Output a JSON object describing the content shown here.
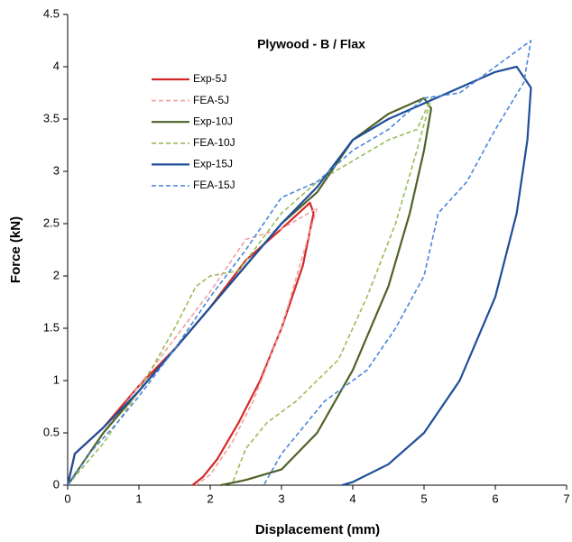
{
  "chart_data": {
    "type": "line",
    "title": "Plywood - B / Flax",
    "x_label": "Displacement (mm)",
    "y_label": "Force (kN)",
    "xlim": [
      0,
      7
    ],
    "xticks": [
      0,
      1,
      2,
      3,
      4,
      5,
      6,
      7
    ],
    "ylim": [
      0,
      4.5
    ],
    "yticks": [
      0,
      0.5,
      1,
      1.5,
      2,
      2.5,
      3,
      3.5,
      4,
      4.5
    ],
    "grid": false,
    "legend": "upper left",
    "series": [
      {
        "name": "Exp-5J",
        "color": "#d42a2a",
        "dashed": false,
        "x": [
          0,
          0.1,
          0.5,
          1,
          1.5,
          2,
          2.5,
          3,
          3.4,
          3.45,
          3.3,
          3.0,
          2.7,
          2.4,
          2.1,
          1.9,
          1.75
        ],
        "values": [
          0,
          0.3,
          0.55,
          0.95,
          1.3,
          1.7,
          2.15,
          2.45,
          2.7,
          2.6,
          2.1,
          1.5,
          1.0,
          0.6,
          0.25,
          0.08,
          0
        ]
      },
      {
        "name": "FEA-5J",
        "color": "#f0a0a0",
        "dashed": true,
        "x": [
          0,
          0.5,
          1,
          1.5,
          2,
          2.5,
          3,
          3.5,
          3.3,
          3.0,
          2.6,
          2.3,
          2.0,
          1.8
        ],
        "values": [
          0,
          0.5,
          0.95,
          1.4,
          1.85,
          2.35,
          2.45,
          2.65,
          2.2,
          1.5,
          0.8,
          0.4,
          0.1,
          0
        ]
      },
      {
        "name": "Exp-10J",
        "color": "#4f6228",
        "dashed": false,
        "x": [
          0,
          0.5,
          1,
          1.5,
          2,
          2.5,
          3,
          3.5,
          4,
          4.5,
          5,
          5.1,
          5.0,
          4.8,
          4.5,
          4.0,
          3.5,
          3.0,
          2.5,
          2.15
        ],
        "values": [
          0,
          0.5,
          0.9,
          1.3,
          1.7,
          2.1,
          2.5,
          2.8,
          3.3,
          3.55,
          3.7,
          3.6,
          3.2,
          2.6,
          1.9,
          1.1,
          0.5,
          0.15,
          0.05,
          0
        ]
      },
      {
        "name": "FEA-10J",
        "color": "#9bbb59",
        "dashed": true,
        "x": [
          0,
          0.5,
          1,
          1.5,
          1.8,
          2,
          2.4,
          3,
          3.5,
          4,
          4.5,
          4.9,
          5.1,
          4.9,
          4.6,
          4.2,
          3.8,
          3.2,
          2.8,
          2.5,
          2.3
        ],
        "values": [
          0,
          0.4,
          0.9,
          1.5,
          1.9,
          2.0,
          2.05,
          2.6,
          2.9,
          3.1,
          3.3,
          3.4,
          3.7,
          3.2,
          2.5,
          1.8,
          1.2,
          0.8,
          0.6,
          0.35,
          0
        ]
      },
      {
        "name": "Exp-15J",
        "color": "#1f4e9a",
        "dashed": false,
        "x": [
          0,
          0.1,
          0.5,
          1,
          1.5,
          2,
          2.5,
          3,
          3.5,
          4,
          4.5,
          5,
          5.5,
          6,
          6.3,
          6.5,
          6.45,
          6.3,
          6.0,
          5.5,
          5.0,
          4.5,
          4.0,
          3.85
        ],
        "values": [
          0,
          0.3,
          0.55,
          0.9,
          1.3,
          1.7,
          2.1,
          2.5,
          2.85,
          3.3,
          3.5,
          3.65,
          3.8,
          3.95,
          4.0,
          3.8,
          3.3,
          2.6,
          1.8,
          1.0,
          0.5,
          0.2,
          0.03,
          0
        ]
      },
      {
        "name": "FEA-15J",
        "color": "#4a86d8",
        "dashed": true,
        "x": [
          0,
          0.3,
          0.7,
          1,
          1.5,
          2,
          2.5,
          3,
          3.5,
          4,
          4.5,
          5,
          5.5,
          6,
          6.2,
          6.5,
          6.4,
          6.0,
          5.6,
          5.2,
          5.0,
          4.6,
          4.2,
          3.6,
          3.0,
          2.75
        ],
        "values": [
          0,
          0.3,
          0.6,
          0.85,
          1.3,
          1.8,
          2.25,
          2.75,
          2.9,
          3.2,
          3.4,
          3.7,
          3.75,
          4.0,
          4.1,
          4.25,
          3.85,
          3.4,
          2.9,
          2.6,
          2.0,
          1.5,
          1.1,
          0.8,
          0.3,
          0
        ]
      }
    ]
  }
}
